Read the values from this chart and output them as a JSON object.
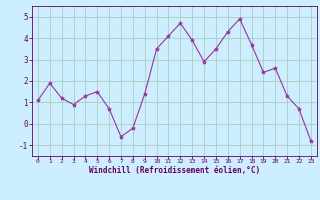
{
  "x": [
    0,
    1,
    2,
    3,
    4,
    5,
    6,
    7,
    8,
    9,
    10,
    11,
    12,
    13,
    14,
    15,
    16,
    17,
    18,
    19,
    20,
    21,
    22,
    23
  ],
  "y": [
    1.1,
    1.9,
    1.2,
    0.9,
    1.3,
    1.5,
    0.7,
    -0.6,
    -0.2,
    1.4,
    3.5,
    4.1,
    4.7,
    3.9,
    2.9,
    3.5,
    4.3,
    4.9,
    3.7,
    2.4,
    2.6,
    1.3,
    0.7,
    -0.8
  ],
  "line_color": "#993399",
  "marker": "*",
  "marker_size": 3,
  "background_color": "#cceeff",
  "grid_color": "#aaccbb",
  "xlabel": "Windchill (Refroidissement éolien,°C)",
  "xlabel_color": "#660066",
  "tick_color": "#660066",
  "spine_color": "#660066",
  "ylim": [
    -1.5,
    5.5
  ],
  "xlim": [
    -0.5,
    23.5
  ],
  "yticks": [
    -1,
    0,
    1,
    2,
    3,
    4,
    5
  ],
  "xticks": [
    0,
    1,
    2,
    3,
    4,
    5,
    6,
    7,
    8,
    9,
    10,
    11,
    12,
    13,
    14,
    15,
    16,
    17,
    18,
    19,
    20,
    21,
    22,
    23
  ],
  "figsize": [
    3.2,
    2.0
  ],
  "dpi": 100
}
